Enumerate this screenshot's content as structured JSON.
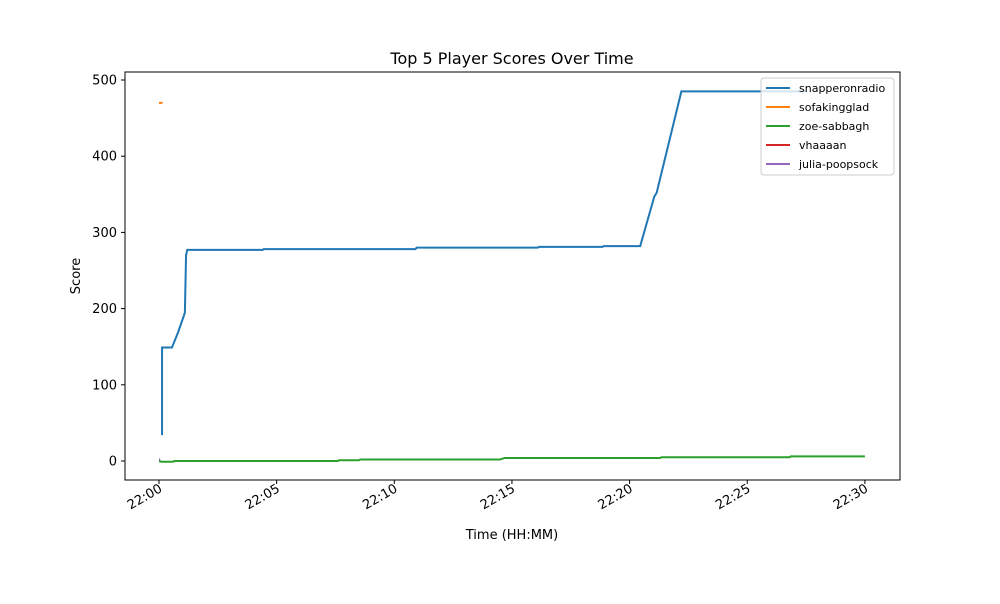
{
  "chart_data": {
    "type": "line",
    "title": "Top 5 Player Scores Over Time",
    "xlabel": "Time (HH:MM)",
    "ylabel": "Score",
    "xlim": [
      "21:58.6",
      "22:31.5"
    ],
    "ylim": [
      -25,
      512
    ],
    "xticks": [
      "22:00",
      "22:05",
      "22:10",
      "22:15",
      "22:20",
      "22:25",
      "22:30"
    ],
    "yticks": [
      0,
      100,
      200,
      300,
      400,
      500
    ],
    "grid": false,
    "legend": "top-right",
    "series": [
      {
        "name": "snapperonradio",
        "color": "#1f77b4",
        "points": [
          [
            "22:00.13",
            34
          ],
          [
            "22:00.13",
            149
          ],
          [
            "22:00.55",
            149
          ],
          [
            "22:00.8",
            168
          ],
          [
            "22:01.05",
            190
          ],
          [
            "22:01.1",
            195
          ],
          [
            "22:01.15",
            270
          ],
          [
            "22:01.2",
            277
          ],
          [
            "22:04.4",
            277
          ],
          [
            "22:04.45",
            278
          ],
          [
            "22:10.9",
            278
          ],
          [
            "22:10.95",
            280
          ],
          [
            "22:16.1",
            280
          ],
          [
            "22:16.15",
            281
          ],
          [
            "22:18.85",
            281
          ],
          [
            "22:18.9",
            282
          ],
          [
            "22:20.45",
            282
          ],
          [
            "22:21.05",
            347
          ],
          [
            "22:21.15",
            352
          ],
          [
            "22:22.2",
            485
          ],
          [
            "22:27.5",
            485
          ]
        ]
      },
      {
        "name": "sofakingglad",
        "color": "#ff7f0e",
        "points": [
          [
            "22:00.0",
            470
          ],
          [
            "22:00.15",
            470
          ]
        ]
      },
      {
        "name": "zoe-sabbagh",
        "color": "#2ca02c",
        "points": [
          [
            "22:00.0",
            0
          ],
          [
            "22:00.1",
            -1
          ],
          [
            "22:00.6",
            -1
          ],
          [
            "22:00.65",
            0
          ],
          [
            "22:07.6",
            0
          ],
          [
            "22:07.65",
            1
          ],
          [
            "22:08.5",
            1
          ],
          [
            "22:08.55",
            2
          ],
          [
            "22:14.5",
            2
          ],
          [
            "22:14.6",
            3
          ],
          [
            "22:14.7",
            4
          ],
          [
            "22:21.3",
            4
          ],
          [
            "22:21.35",
            5
          ],
          [
            "22:26.8",
            5
          ],
          [
            "22:26.85",
            6
          ],
          [
            "22:30.0",
            6
          ]
        ]
      },
      {
        "name": "vhaaaan",
        "color": "#d62728",
        "points": []
      },
      {
        "name": "julia-poopsock",
        "color": "#9467bd",
        "points": [
          [
            "22:00.0",
            2
          ],
          [
            "22:00.05",
            2
          ]
        ]
      }
    ]
  }
}
